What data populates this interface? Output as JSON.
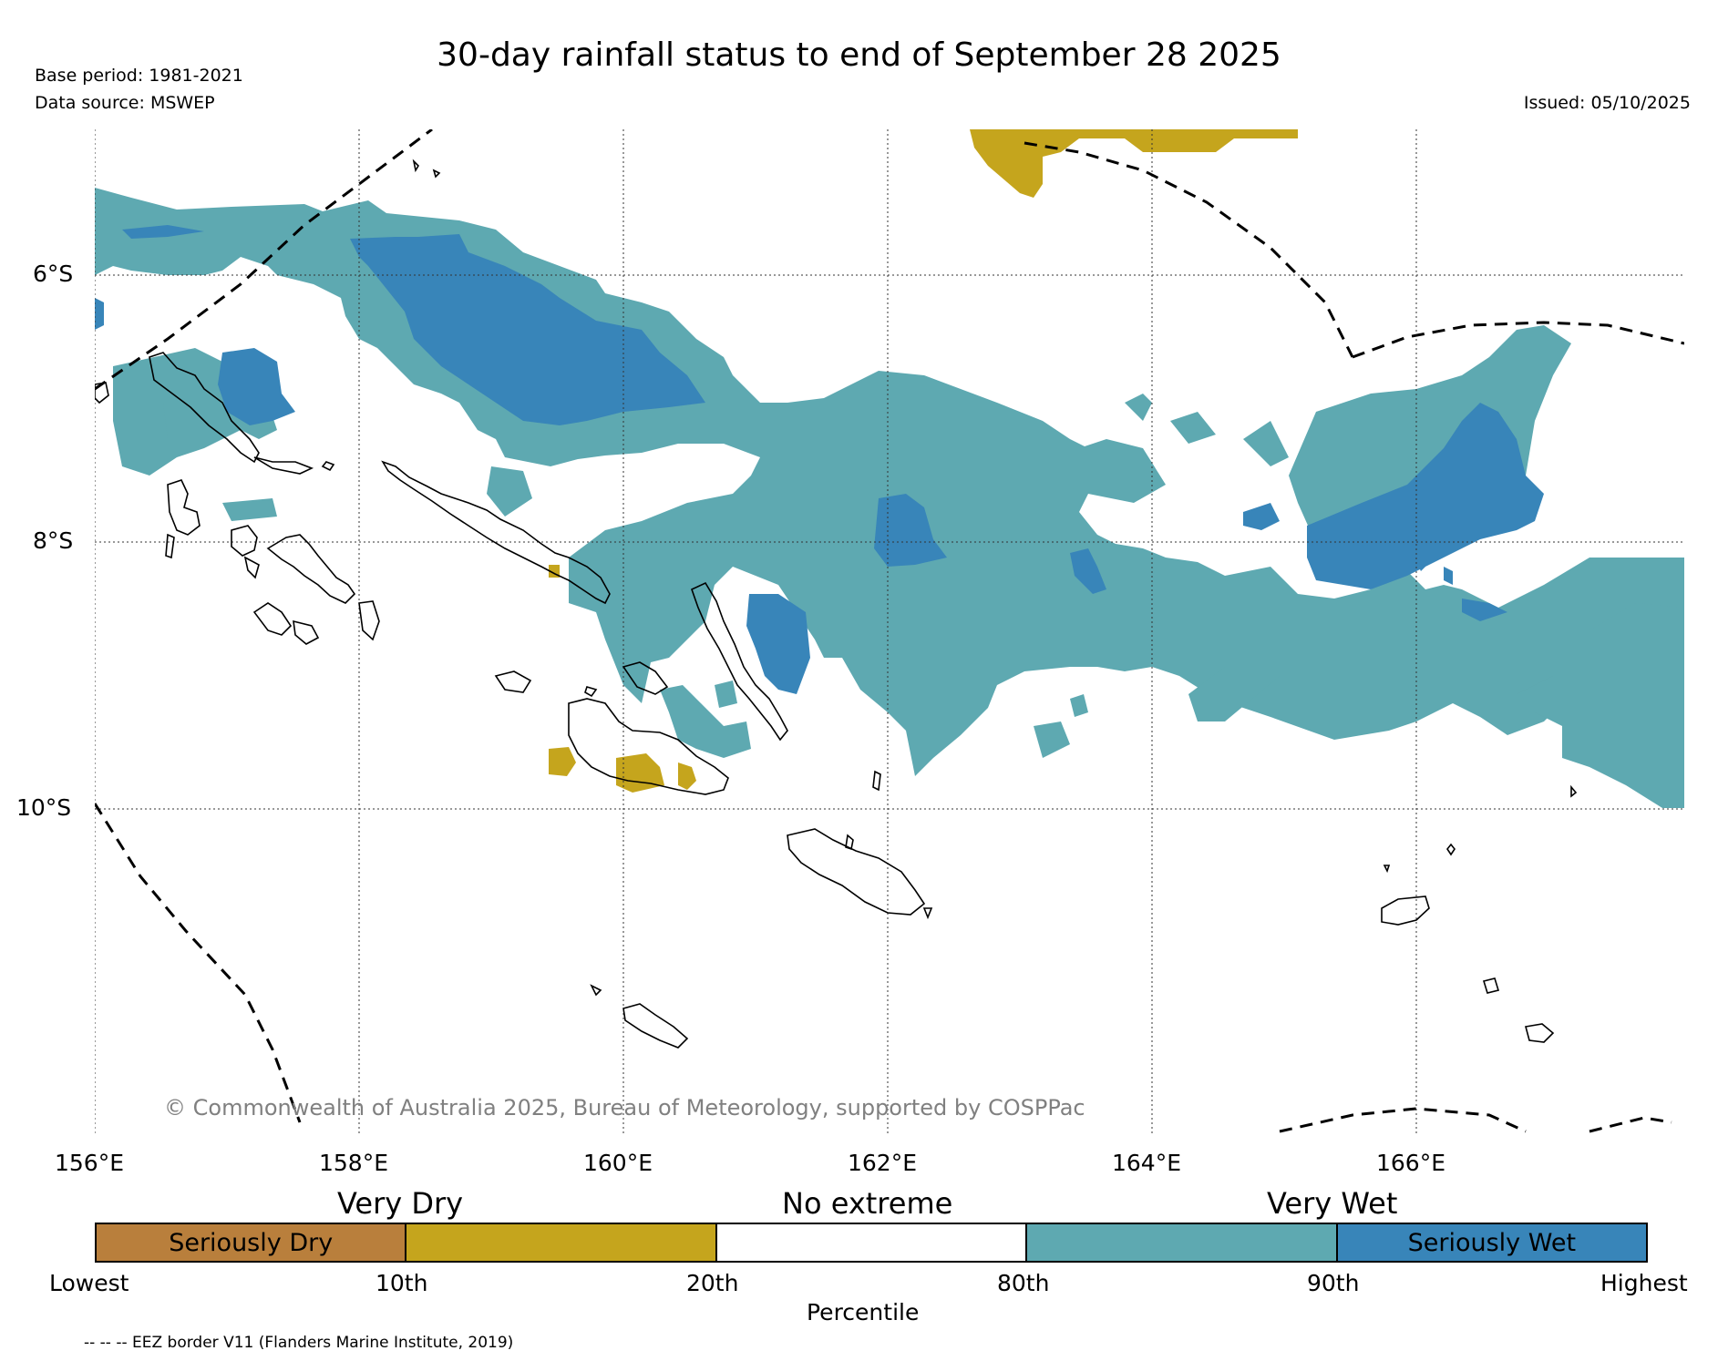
{
  "title": "30-day rainfall status to end of September 28 2025",
  "base_period": "Base period: 1981-2021",
  "data_source": "Data source: MSWEP",
  "issued": "Issued: 05/10/2025",
  "copyright": "© Commonwealth of Australia 2025, Bureau of Meteorology, supported by COSPPac",
  "latitude_labels": [
    "6°S",
    "8°S",
    "10°S"
  ],
  "longitude_labels": [
    "156°E",
    "158°E",
    "160°E",
    "162°E",
    "164°E",
    "166°E"
  ],
  "legend": {
    "category_labels": [
      "Very Dry",
      "No extreme",
      "Very Wet"
    ],
    "segments": [
      {
        "label": "Seriously Dry",
        "color": "#b97f3c"
      },
      {
        "label": "",
        "color": "#c5a51d"
      },
      {
        "label": "",
        "color": "#ffffff"
      },
      {
        "label": "",
        "color": "#5ea9b1"
      },
      {
        "label": "Seriously Wet",
        "color": "#3885b9"
      }
    ],
    "tick_labels": [
      "Lowest",
      "10th",
      "20th",
      "80th",
      "90th",
      "Highest"
    ],
    "axis_label": "Percentile"
  },
  "eez_note": "-- -- -- EEZ border V11 (Flanders Marine Institute, 2019)",
  "colors": {
    "very_wet": "#5ea9b1",
    "seriously_wet": "#3885b9",
    "very_dry": "#c5a51d",
    "seriously_dry": "#b97f3c",
    "no_extreme": "#ffffff"
  }
}
